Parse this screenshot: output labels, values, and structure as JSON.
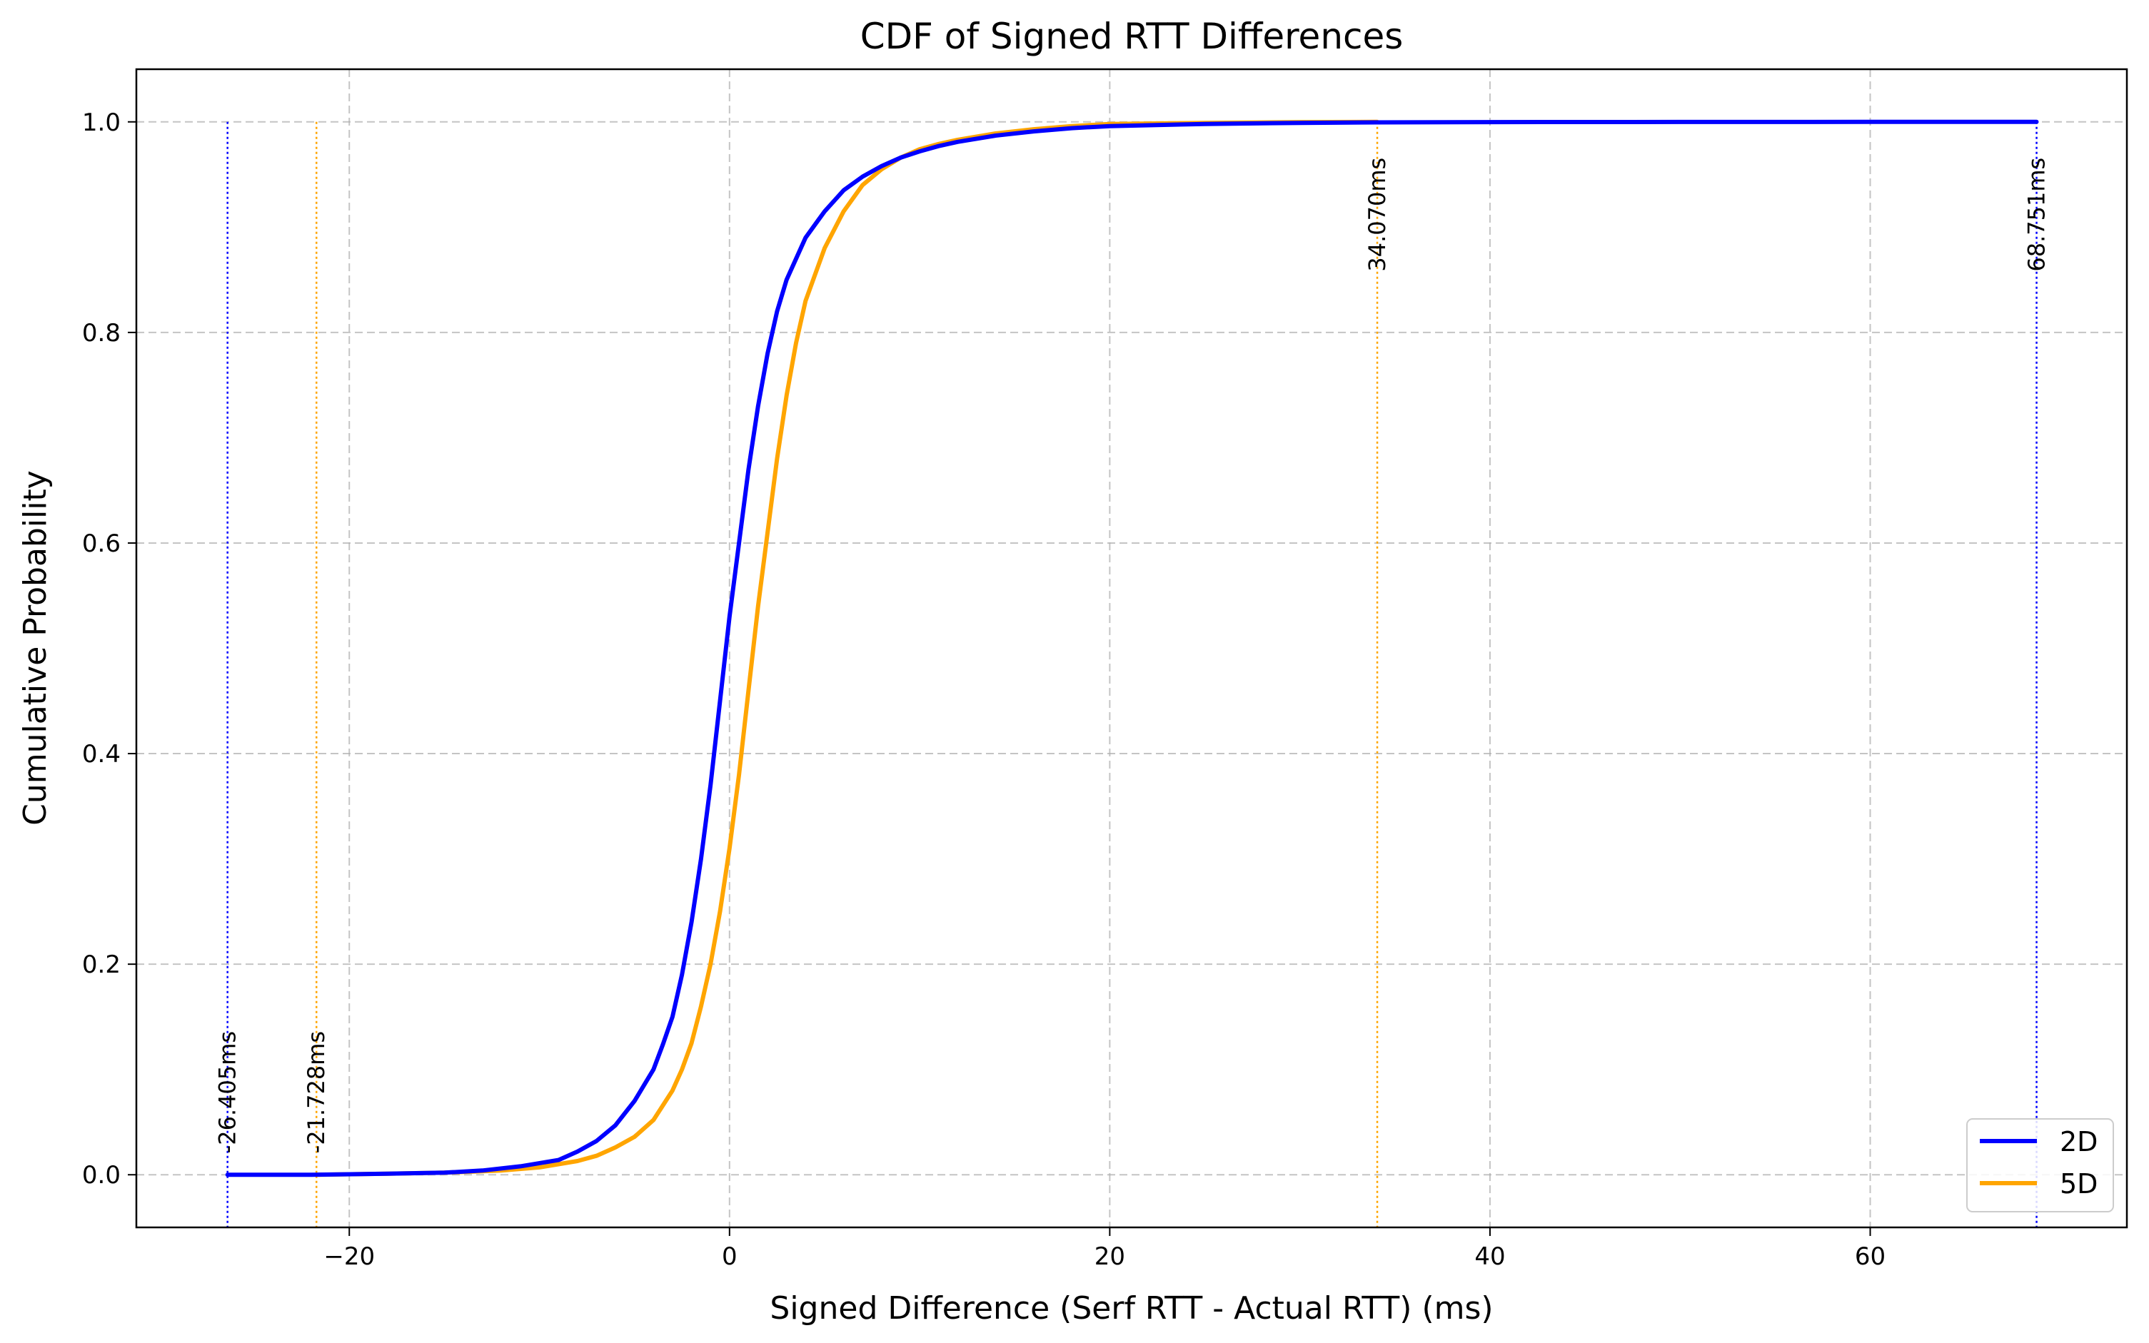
{
  "chart_data": {
    "type": "line",
    "title": "CDF of Signed RTT Differences",
    "xlabel": "Signed Difference (Serf RTT - Actual RTT) (ms)",
    "ylabel": "Cumulative Probability",
    "xlim": [
      -31.2,
      73.5
    ],
    "ylim": [
      -0.05,
      1.05
    ],
    "xticks": [
      -20,
      0,
      20,
      40,
      60
    ],
    "xtick_labels": [
      "−20",
      "0",
      "20",
      "40",
      "60"
    ],
    "yticks": [
      0.0,
      0.2,
      0.4,
      0.6,
      0.8,
      1.0
    ],
    "ytick_labels": [
      "0.0",
      "0.2",
      "0.4",
      "0.6",
      "0.8",
      "1.0"
    ],
    "grid": true,
    "legend_position": "lower-right",
    "series": [
      {
        "name": "2D",
        "color": "#0000ff",
        "x": [
          -26.405,
          -22,
          -18,
          -15,
          -13,
          -11,
          -9,
          -8,
          -7,
          -6,
          -5,
          -4,
          -3.5,
          -3,
          -2.5,
          -2,
          -1.5,
          -1,
          -0.5,
          0,
          0.5,
          1,
          1.5,
          2,
          2.5,
          3,
          4,
          5,
          6,
          7,
          8,
          9,
          10,
          11,
          12,
          14,
          16,
          18,
          20,
          25,
          30,
          34,
          40,
          50,
          60,
          68.751
        ],
        "y": [
          0.0,
          0.0,
          0.001,
          0.002,
          0.004,
          0.008,
          0.014,
          0.022,
          0.032,
          0.047,
          0.07,
          0.1,
          0.124,
          0.15,
          0.19,
          0.24,
          0.3,
          0.37,
          0.45,
          0.53,
          0.6,
          0.67,
          0.73,
          0.78,
          0.82,
          0.85,
          0.89,
          0.915,
          0.935,
          0.948,
          0.958,
          0.966,
          0.972,
          0.977,
          0.981,
          0.987,
          0.991,
          0.994,
          0.996,
          0.998,
          0.999,
          0.9995,
          0.9998,
          0.9999,
          1.0,
          1.0
        ]
      },
      {
        "name": "5D",
        "color": "#ffa500",
        "x": [
          -21.728,
          -18,
          -15,
          -12,
          -10,
          -8,
          -7,
          -6,
          -5,
          -4,
          -3,
          -2.5,
          -2,
          -1.5,
          -1,
          -0.5,
          0,
          0.5,
          1,
          1.5,
          2,
          2.5,
          3,
          3.5,
          4,
          5,
          6,
          7,
          8,
          9,
          10,
          11,
          12,
          14,
          16,
          18,
          20,
          25,
          30,
          34.07
        ],
        "y": [
          0.0,
          0.001,
          0.002,
          0.004,
          0.007,
          0.013,
          0.018,
          0.026,
          0.036,
          0.052,
          0.08,
          0.1,
          0.125,
          0.16,
          0.2,
          0.25,
          0.31,
          0.38,
          0.46,
          0.54,
          0.61,
          0.68,
          0.74,
          0.79,
          0.83,
          0.88,
          0.915,
          0.94,
          0.955,
          0.966,
          0.974,
          0.979,
          0.983,
          0.989,
          0.993,
          0.996,
          0.998,
          0.999,
          0.9998,
          1.0
        ]
      }
    ],
    "annotations": [
      {
        "label": "-26.405ms",
        "x": -26.405,
        "color": "#0000ff",
        "anchor": "bottom"
      },
      {
        "label": "-21.728ms",
        "x": -21.728,
        "color": "#ffa500",
        "anchor": "bottom"
      },
      {
        "label": "34.070ms",
        "x": 34.07,
        "color": "#ffa500",
        "anchor": "top"
      },
      {
        "label": "68.751ms",
        "x": 68.751,
        "color": "#0000ff",
        "anchor": "top"
      }
    ]
  }
}
